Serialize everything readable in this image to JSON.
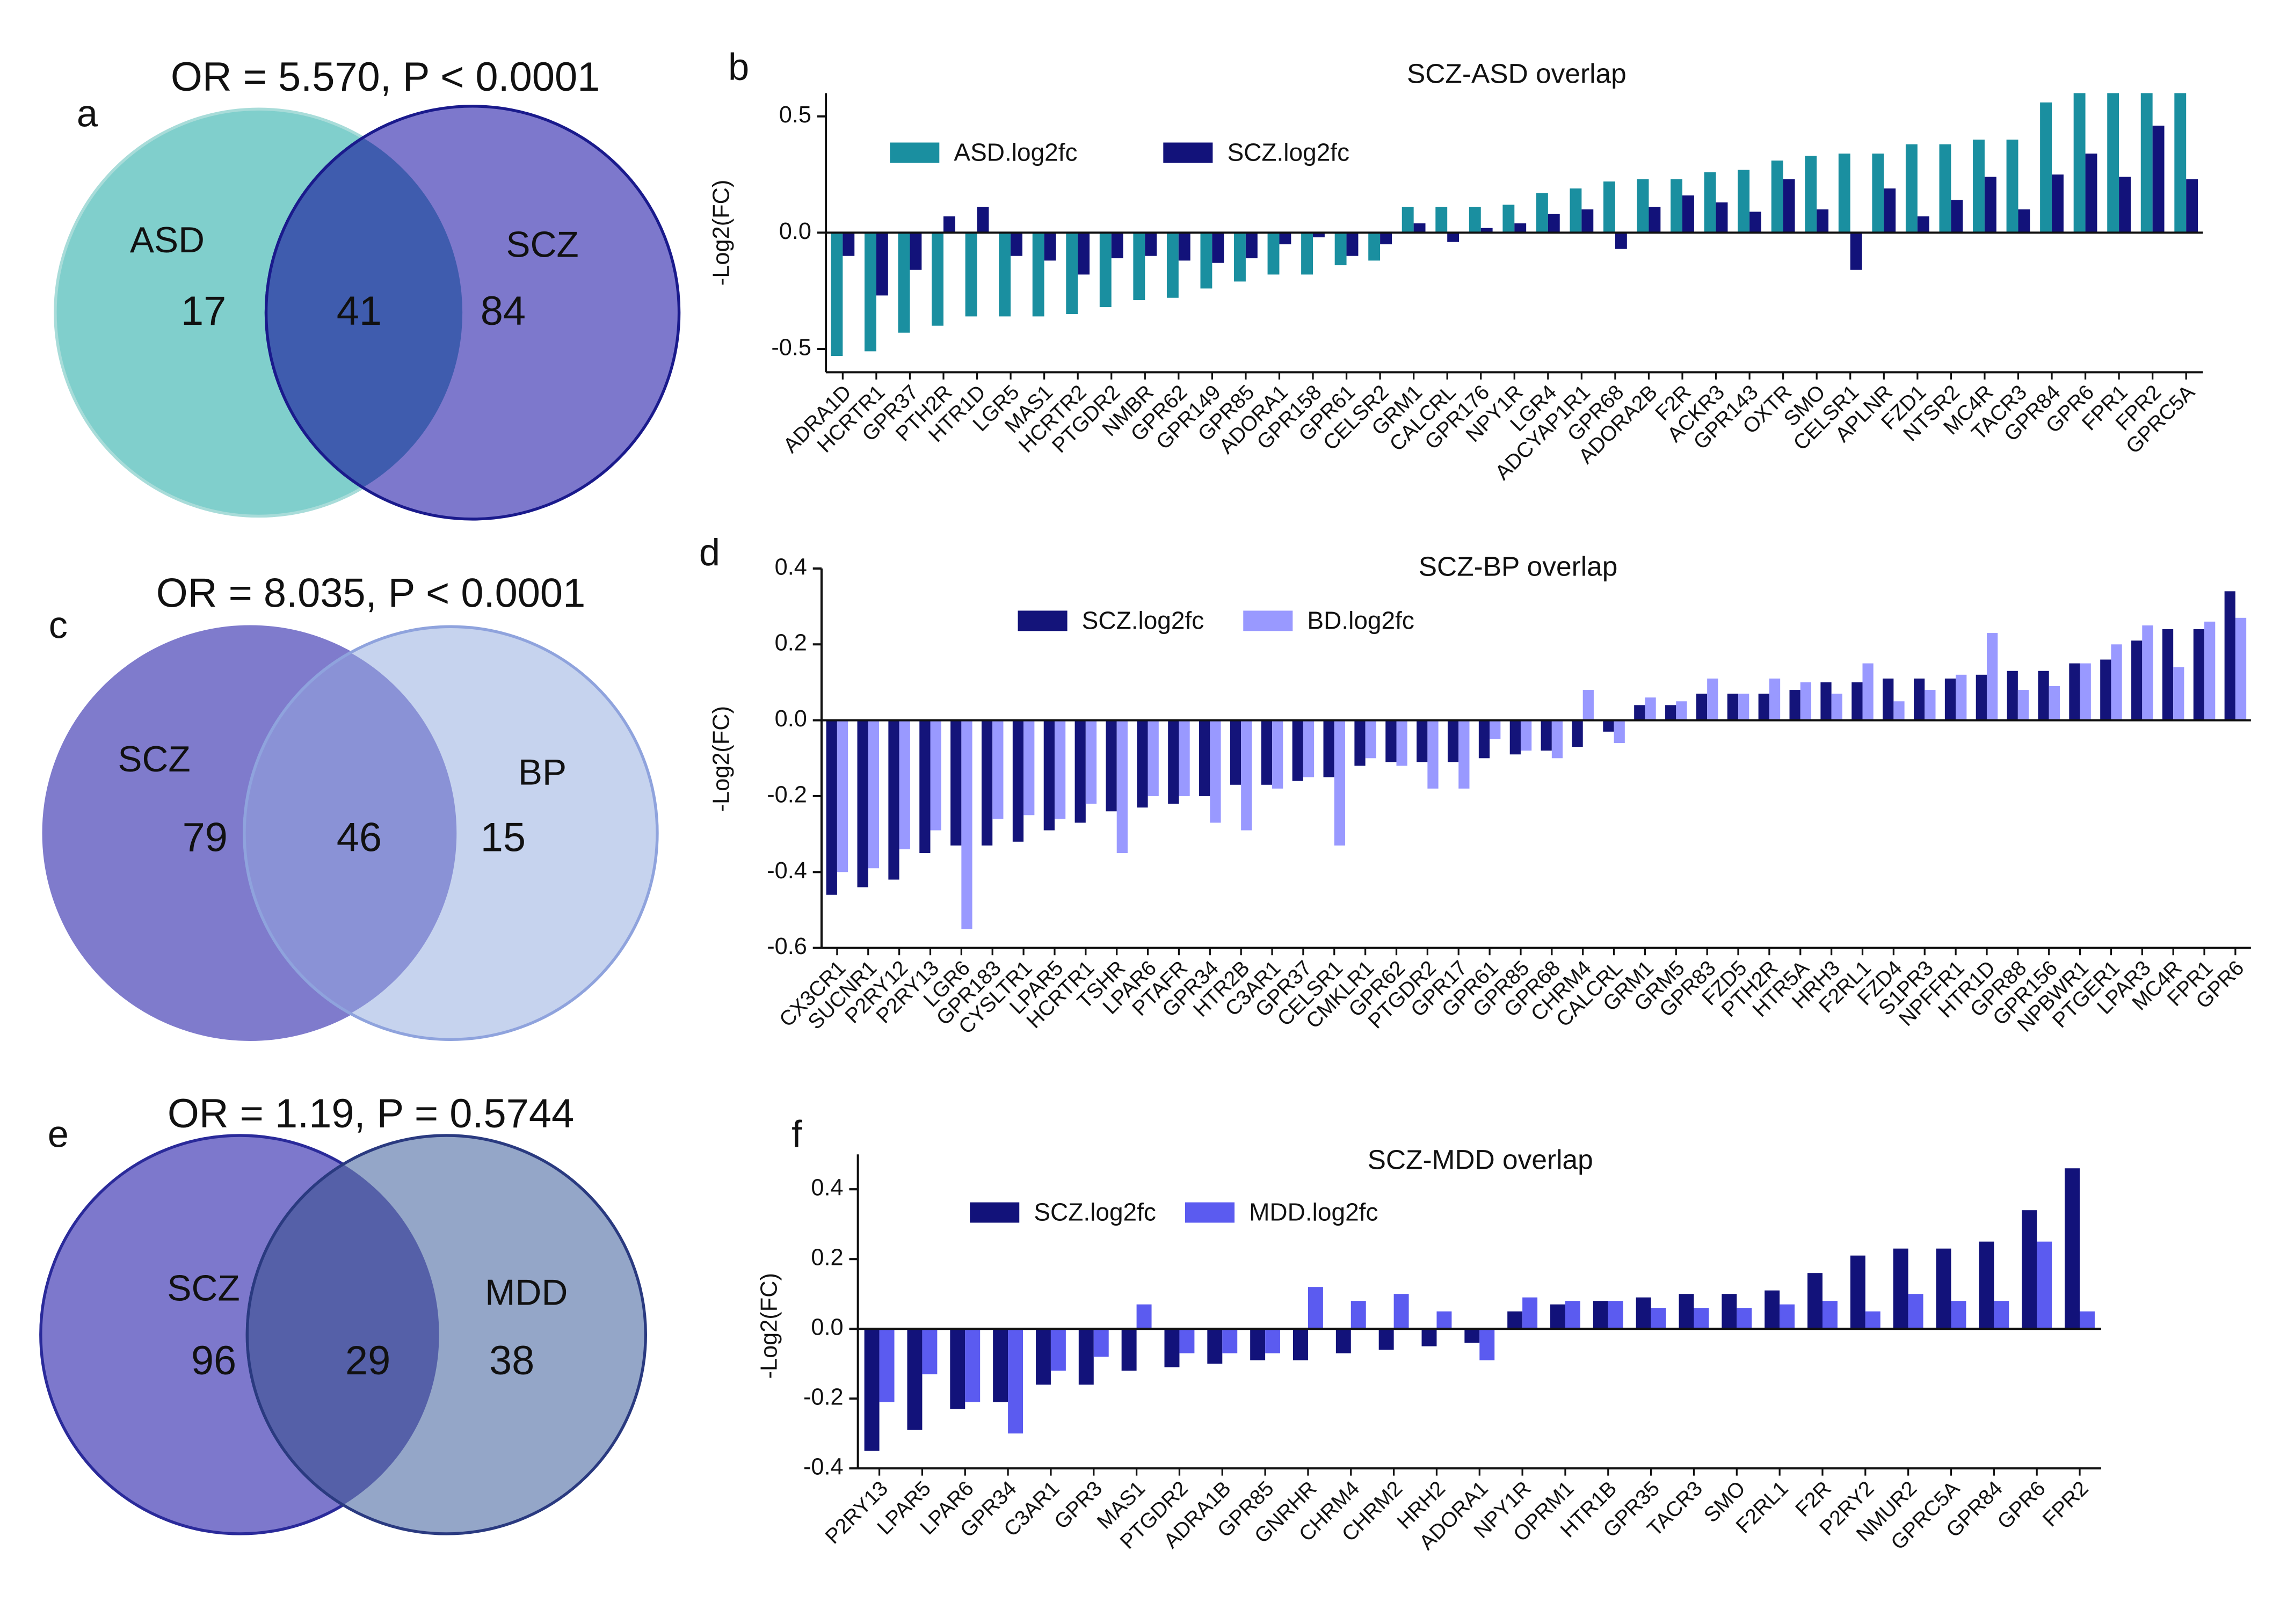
{
  "chart_data": [
    {
      "type": "venn",
      "panel": "a",
      "title": "OR = 5.570, P < 0.0001",
      "sets": [
        "ASD",
        "SCZ"
      ],
      "values": [
        17,
        41,
        84
      ],
      "colors": [
        "#80cfcc",
        "#7d78cc",
        "#3f5cae"
      ],
      "strokes": [
        "#a8dcd9",
        "#1a1a8c"
      ]
    },
    {
      "type": "bar",
      "panel": "b",
      "title": "SCZ-ASD overlap",
      "ylabel": "-Log2(FC)",
      "categories": [
        "ADRA1D",
        "HCRTR1",
        "GPR37",
        "PTH2R",
        "HTR1D",
        "LGR5",
        "MAS1",
        "HCRTR2",
        "PTGDR2",
        "NMBR",
        "GPR62",
        "GPR149",
        "GPR85",
        "ADORA1",
        "GPR158",
        "GPR61",
        "CELSR2",
        "GRM1",
        "CALCRL",
        "GPR176",
        "NPY1R",
        "LGR4",
        "ADCYAP1R1",
        "GPR68",
        "ADORA2B",
        "F2R",
        "ACKR3",
        "GPR143",
        "OXTR",
        "SMO",
        "CELSR1",
        "APLNR",
        "FZD1",
        "NTSR2",
        "MC4R",
        "TACR3",
        "GPR84",
        "GPR6",
        "FPR1",
        "FPR2",
        "GPRC5A"
      ],
      "series": [
        {
          "name": "ASD.log2fc",
          "color": "#1a8fa0",
          "values": [
            -0.53,
            -0.51,
            -0.43,
            -0.4,
            -0.36,
            -0.36,
            -0.36,
            -0.35,
            -0.32,
            -0.29,
            -0.28,
            -0.24,
            -0.21,
            -0.18,
            -0.18,
            -0.14,
            -0.12,
            0.11,
            0.11,
            0.11,
            0.12,
            0.17,
            0.19,
            0.22,
            0.23,
            0.23,
            0.26,
            0.27,
            0.31,
            0.33,
            0.34,
            0.34,
            0.38,
            0.38,
            0.4,
            0.4,
            0.56,
            0.6,
            0.6,
            0.6,
            0.6
          ]
        },
        {
          "name": "SCZ.log2fc",
          "color": "#12127a",
          "values": [
            -0.1,
            -0.27,
            -0.16,
            0.07,
            0.11,
            -0.1,
            -0.12,
            -0.18,
            -0.11,
            -0.1,
            -0.12,
            -0.13,
            -0.11,
            -0.05,
            -0.02,
            -0.1,
            -0.05,
            0.04,
            -0.04,
            0.02,
            0.04,
            0.08,
            0.1,
            -0.07,
            0.11,
            0.16,
            0.13,
            0.09,
            0.23,
            0.1,
            -0.16,
            0.19,
            0.07,
            0.14,
            0.24,
            0.1,
            0.25,
            0.34,
            0.24,
            0.46,
            0.23
          ]
        }
      ],
      "ylim": [
        -0.6,
        0.6
      ],
      "yticks": [
        -0.5,
        {
          "value": 0,
          "label": "0.0"
        },
        0.5
      ]
    },
    {
      "type": "venn",
      "panel": "c",
      "title": "OR = 8.035, P < 0.0001",
      "sets": [
        "SCZ",
        "BP"
      ],
      "values": [
        79,
        46,
        15
      ],
      "colors": [
        "#7f7bcc",
        "#c6d3ee",
        "#8a92d6"
      ],
      "strokes": [
        "#7f7bcc",
        "#8fa3dd"
      ]
    },
    {
      "type": "bar",
      "panel": "d",
      "title": "SCZ-BP overlap",
      "ylabel": "-Log2(FC)",
      "categories": [
        "CX3CR1",
        "SUCNR1",
        "P2RY12",
        "P2RY13",
        "LGR6",
        "GPR183",
        "CYSLTR1",
        "LPAR5",
        "HCRTR1",
        "TSHR",
        "LPAR6",
        "PTAFR",
        "GPR34",
        "HTR2B",
        "C3AR1",
        "GPR37",
        "CELSR1",
        "CMKLR1",
        "GPR62",
        "PTGDR2",
        "GPR17",
        "GPR61",
        "GPR85",
        "GPR68",
        "CHRM4",
        "CALCRL",
        "GRM1",
        "GRM5",
        "GPR83",
        "FZD5",
        "PTH2R",
        "HTR5A",
        "HRH3",
        "F2RL1",
        "FZD4",
        "S1PR3",
        "NPFFR1",
        "HTR1D",
        "GPR88",
        "GPR156",
        "NPBWR1",
        "PTGER1",
        "LPAR3",
        "MC4R",
        "FPR1",
        "GPR6"
      ],
      "series": [
        {
          "name": "SCZ.log2fc",
          "color": "#14147a",
          "values": [
            -0.46,
            -0.44,
            -0.42,
            -0.35,
            -0.33,
            -0.33,
            -0.32,
            -0.29,
            -0.27,
            -0.24,
            -0.23,
            -0.22,
            -0.2,
            -0.17,
            -0.17,
            -0.16,
            -0.15,
            -0.12,
            -0.11,
            -0.11,
            -0.11,
            -0.1,
            -0.09,
            -0.08,
            -0.07,
            -0.03,
            0.04,
            0.04,
            0.07,
            0.07,
            0.07,
            0.08,
            0.1,
            0.1,
            0.11,
            0.11,
            0.11,
            0.12,
            0.13,
            0.13,
            0.15,
            0.16,
            0.21,
            0.24,
            0.24,
            0.34
          ]
        },
        {
          "name": "BD.log2fc",
          "color": "#9999ff",
          "values": [
            -0.4,
            -0.39,
            -0.34,
            -0.29,
            -0.55,
            -0.26,
            -0.25,
            -0.26,
            -0.22,
            -0.35,
            -0.2,
            -0.2,
            -0.27,
            -0.29,
            -0.18,
            -0.15,
            -0.33,
            -0.1,
            -0.12,
            -0.18,
            -0.18,
            -0.05,
            -0.08,
            -0.1,
            0.08,
            -0.06,
            0.06,
            0.05,
            0.11,
            0.07,
            0.11,
            0.1,
            0.07,
            0.15,
            0.05,
            0.08,
            0.12,
            0.23,
            0.08,
            0.09,
            0.15,
            0.2,
            0.25,
            0.14,
            0.26,
            0.27
          ]
        }
      ],
      "ylim": [
        -0.6,
        0.4
      ],
      "yticks": [
        -0.6,
        -0.4,
        -0.2,
        {
          "value": 0,
          "label": "0.0"
        },
        0.2,
        0.4
      ]
    },
    {
      "type": "venn",
      "panel": "e",
      "title": "OR = 1.19, P = 0.5744",
      "sets": [
        "SCZ",
        "MDD"
      ],
      "values": [
        96,
        29,
        38
      ],
      "colors": [
        "#7d78cc",
        "#94a6c8",
        "#5560a8"
      ],
      "strokes": [
        "#2a2a9a",
        "#2a3a80"
      ]
    },
    {
      "type": "bar",
      "panel": "f",
      "title": "SCZ-MDD overlap",
      "ylabel": "-Log2(FC)",
      "categories": [
        "P2RY13",
        "LPAR5",
        "LPAR6",
        "GPR34",
        "C3AR1",
        "GPR3",
        "MAS1",
        "PTGDR2",
        "ADRA1B",
        "GPR85",
        "GNRHR",
        "CHRM4",
        "CHRM2",
        "HRH2",
        "ADORA1",
        "NPY1R",
        "OPRM1",
        "HTR1B",
        "GPR35",
        "TACR3",
        "SMO",
        "F2RL1",
        "F2R",
        "P2RY2",
        "NMUR2",
        "GPRC5A",
        "GPR84",
        "GPR6",
        "FPR2"
      ],
      "series": [
        {
          "name": "SCZ.log2fc",
          "color": "#12127a",
          "values": [
            -0.35,
            -0.29,
            -0.23,
            -0.21,
            -0.16,
            -0.16,
            -0.12,
            -0.11,
            -0.1,
            -0.09,
            -0.09,
            -0.07,
            -0.06,
            -0.05,
            -0.04,
            0.05,
            0.07,
            0.08,
            0.09,
            0.1,
            0.1,
            0.11,
            0.16,
            0.21,
            0.23,
            0.23,
            0.25,
            0.34,
            0.46
          ]
        },
        {
          "name": "MDD.log2fc",
          "color": "#5b5bf0",
          "values": [
            -0.21,
            -0.13,
            -0.21,
            -0.3,
            -0.12,
            -0.08,
            0.07,
            -0.07,
            -0.07,
            -0.07,
            0.12,
            0.08,
            0.1,
            0.05,
            -0.09,
            0.09,
            0.08,
            0.08,
            0.06,
            0.06,
            0.06,
            0.07,
            0.08,
            0.05,
            0.1,
            0.08,
            0.08,
            0.25,
            0.05
          ]
        }
      ],
      "ylim": [
        -0.4,
        0.5
      ],
      "yticks": [
        -0.4,
        -0.2,
        {
          "value": 0,
          "label": "0.0"
        },
        0.2,
        0.4
      ]
    }
  ]
}
